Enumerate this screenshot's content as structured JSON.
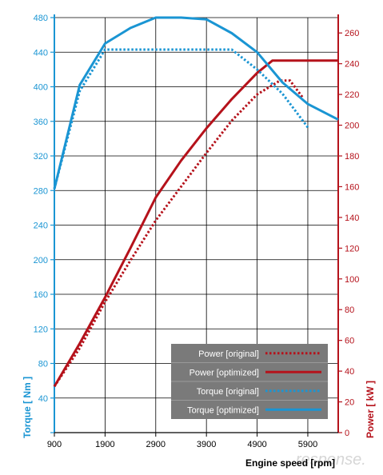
{
  "chart_data": {
    "type": "line",
    "xlabel": "Engine speed [rpm]",
    "x_ticks": [
      900,
      1900,
      2900,
      3900,
      4900,
      5900
    ],
    "xlim": [
      900,
      6500
    ],
    "y_left": {
      "label": "Torque [ Nm ]",
      "ticks": [
        0,
        40,
        80,
        120,
        160,
        200,
        240,
        280,
        320,
        360,
        400,
        440,
        480
      ],
      "ylim": [
        0,
        480
      ]
    },
    "y_right": {
      "label": "Power [ kW ]",
      "ticks": [
        0,
        20,
        40,
        60,
        80,
        100,
        120,
        140,
        160,
        180,
        200,
        220,
        240,
        260
      ],
      "ylim": [
        0,
        270
      ]
    },
    "grid": true,
    "legend_position": "bottom-right",
    "colors": {
      "torque": "#1a95d3",
      "power": "#b5121b",
      "legend_bg": "#7a7a7a",
      "legend_row_divider": "#9a9a9a"
    },
    "series": [
      {
        "name": "Power [original]",
        "axis": "right",
        "style": "dotted",
        "color": "#b5121b",
        "points": [
          [
            900,
            30
          ],
          [
            1400,
            55
          ],
          [
            1900,
            85
          ],
          [
            2400,
            112
          ],
          [
            2900,
            138
          ],
          [
            3400,
            160
          ],
          [
            3900,
            182
          ],
          [
            4400,
            203
          ],
          [
            4900,
            220
          ],
          [
            5350,
            229
          ],
          [
            5550,
            229
          ],
          [
            5800,
            218
          ]
        ]
      },
      {
        "name": "Power [optimized]",
        "axis": "right",
        "style": "solid",
        "color": "#b5121b",
        "points": [
          [
            900,
            30
          ],
          [
            1400,
            58
          ],
          [
            1900,
            88
          ],
          [
            2400,
            120
          ],
          [
            2900,
            153
          ],
          [
            3400,
            177
          ],
          [
            3900,
            198
          ],
          [
            4400,
            217
          ],
          [
            4900,
            234
          ],
          [
            5200,
            242
          ],
          [
            6500,
            242
          ]
        ]
      },
      {
        "name": "Torque [original]",
        "axis": "left",
        "style": "dotted",
        "color": "#1a95d3",
        "points": [
          [
            900,
            282
          ],
          [
            1400,
            395
          ],
          [
            1900,
            443
          ],
          [
            2900,
            443
          ],
          [
            3900,
            443
          ],
          [
            4400,
            443
          ],
          [
            4900,
            420
          ],
          [
            5400,
            392
          ],
          [
            5900,
            353
          ]
        ]
      },
      {
        "name": "Torque [optimized]",
        "axis": "left",
        "style": "solid",
        "color": "#1a95d3",
        "points": [
          [
            900,
            282
          ],
          [
            1400,
            402
          ],
          [
            1900,
            450
          ],
          [
            2400,
            468
          ],
          [
            2900,
            480
          ],
          [
            3400,
            480
          ],
          [
            3900,
            478
          ],
          [
            4400,
            462
          ],
          [
            4900,
            440
          ],
          [
            5400,
            405
          ],
          [
            5900,
            380
          ],
          [
            6500,
            362
          ]
        ]
      }
    ]
  },
  "watermark_text": "response."
}
